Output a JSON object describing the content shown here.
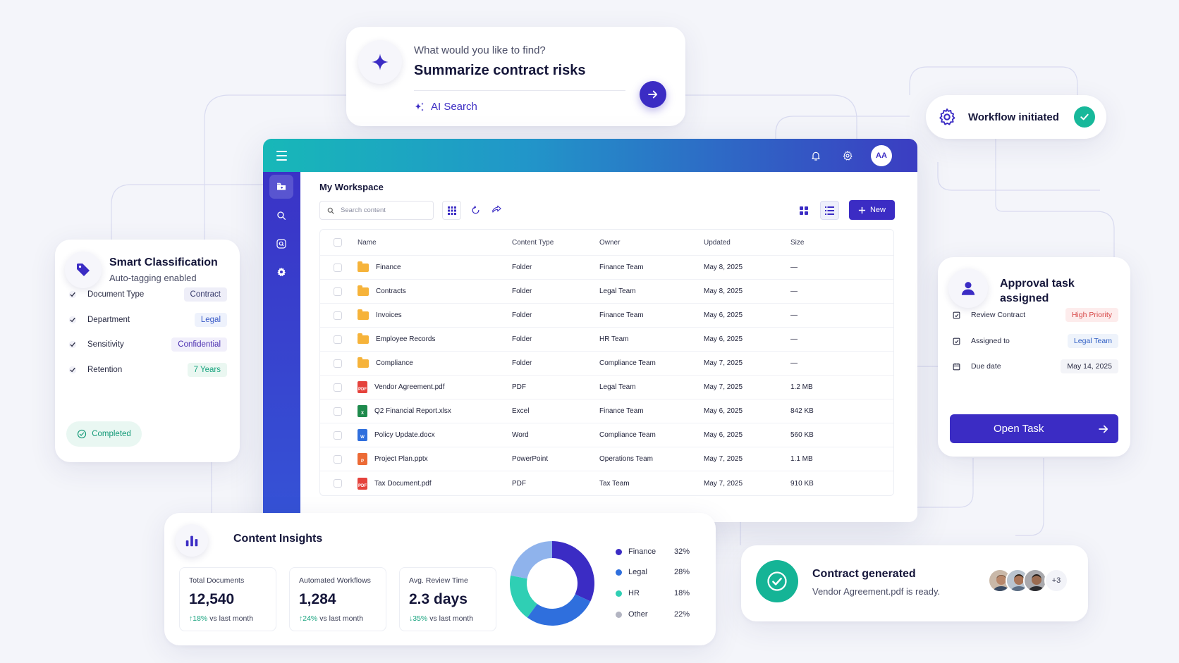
{
  "ai_search": {
    "prompt": "What would you like to find?",
    "query": "Summarize contract risks",
    "label": "AI Search"
  },
  "workflow": {
    "label": "Workflow initiated"
  },
  "app": {
    "avatar_initials": "AA",
    "workspace_title": "My Workspace",
    "search_placeholder": "Search content",
    "new_label": "New",
    "columns": [
      "Name",
      "Content Type",
      "Owner",
      "Updated",
      "Size"
    ],
    "rows": [
      {
        "name": "Finance",
        "icon": "folder-icon",
        "type": "Folder",
        "owner": "Finance Team",
        "updated": "May 8, 2025",
        "size": "—"
      },
      {
        "name": "Contracts",
        "icon": "folder-icon",
        "type": "Folder",
        "owner": "Legal Team",
        "updated": "May 8, 2025",
        "size": "—"
      },
      {
        "name": "Invoices",
        "icon": "folder-icon",
        "type": "Folder",
        "owner": "Finance Team",
        "updated": "May 6, 2025",
        "size": "—"
      },
      {
        "name": "Employee Records",
        "icon": "folder-icon",
        "type": "Folder",
        "owner": "HR Team",
        "updated": "May 6, 2025",
        "size": "—"
      },
      {
        "name": "Compliance",
        "icon": "folder-icon",
        "type": "Folder",
        "owner": "Compliance Team",
        "updated": "May 7, 2025",
        "size": "—"
      },
      {
        "name": "Vendor Agreement.pdf",
        "icon": "pdf-icon",
        "type": "PDF",
        "owner": "Legal Team",
        "updated": "May 7, 2025",
        "size": "1.2 MB"
      },
      {
        "name": "Q2 Financial Report.xlsx",
        "icon": "excel-icon",
        "type": "Excel",
        "owner": "Finance Team",
        "updated": "May 6, 2025",
        "size": "842 KB"
      },
      {
        "name": "Policy Update.docx",
        "icon": "word-icon",
        "type": "Word",
        "owner": "Compliance Team",
        "updated": "May 6, 2025",
        "size": "560 KB"
      },
      {
        "name": "Project Plan.pptx",
        "icon": "powerpoint-icon",
        "type": "PowerPoint",
        "owner": "Operations Team",
        "updated": "May 7, 2025",
        "size": "1.1 MB"
      },
      {
        "name": "Tax Document.pdf",
        "icon": "pdf-icon",
        "type": "PDF",
        "owner": "Tax Team",
        "updated": "May 7, 2025",
        "size": "910 KB"
      }
    ],
    "file_icon_text": {
      "pdf": "PDF",
      "excel": "X",
      "word": "W",
      "powerpoint": "P"
    }
  },
  "smart_classification": {
    "title": "Smart Classification",
    "subtitle": "Auto-tagging enabled",
    "items": [
      {
        "label": "Document Type",
        "tag": "Contract",
        "tag_bg": "#eeeef8",
        "tag_color": "#3a3d6e"
      },
      {
        "label": "Department",
        "tag": "Legal",
        "tag_bg": "#eef2fc",
        "tag_color": "#3a5bc7"
      },
      {
        "label": "Sensitivity",
        "tag": "Confidential",
        "tag_bg": "#f1effb",
        "tag_color": "#4b2fb0"
      },
      {
        "label": "Retention",
        "tag": "7 Years",
        "tag_bg": "#eaf7f1",
        "tag_color": "#17a37e"
      }
    ],
    "status": "Completed"
  },
  "approval": {
    "title": "Approval task assigned",
    "items": [
      {
        "label": "Review Contract",
        "value": "High Priority",
        "bg": "#fdecec",
        "color": "#d64545",
        "icon": "check-square-icon"
      },
      {
        "label": "Assigned to",
        "value": "Legal Team",
        "bg": "#eef3fb",
        "color": "#2f5ec4",
        "icon": "check-square-icon"
      },
      {
        "label": "Due date",
        "value": "May 14, 2025",
        "bg": "#f3f4f8",
        "color": "#2a2c44",
        "icon": "calendar-icon"
      }
    ],
    "button": "Open Task"
  },
  "insights": {
    "title": "Content Insights",
    "metrics": [
      {
        "label": "Total Documents",
        "value": "12,540",
        "delta": "↑18%",
        "delta_suffix": "vs last month"
      },
      {
        "label": "Automated Workflows",
        "value": "1,284",
        "delta": "↑24%",
        "delta_suffix": "vs last month"
      },
      {
        "label": "Avg. Review Time",
        "value": "2.3 days",
        "delta": "↓35%",
        "delta_suffix": "vs last month"
      }
    ]
  },
  "chart_data": {
    "type": "pie",
    "categories": [
      "Finance",
      "Legal",
      "HR",
      "Other"
    ],
    "values": [
      32,
      28,
      18,
      22
    ],
    "labels": [
      "32%",
      "28%",
      "18%",
      "22%"
    ],
    "colors": [
      "#3b2cc4",
      "#2f6fdd",
      "#2fcfb4",
      "#8fb3ec"
    ],
    "legend": "right"
  },
  "contract": {
    "title": "Contract generated",
    "subtitle": "Vendor Agreement.pdf is ready.",
    "more": "+3"
  }
}
